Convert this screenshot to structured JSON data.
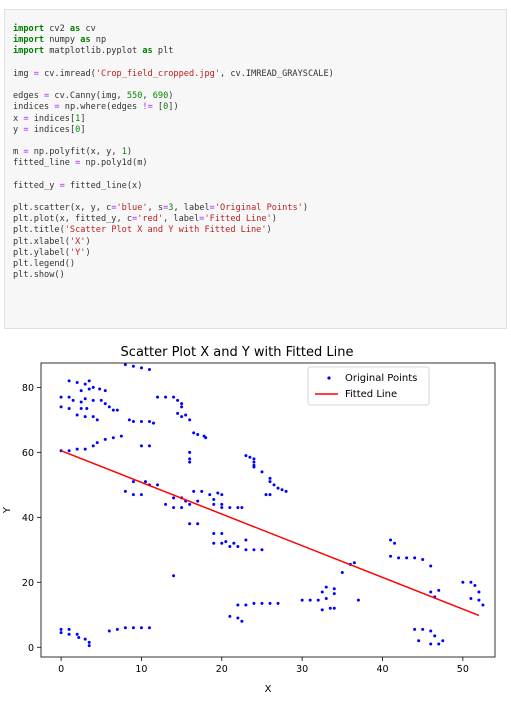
{
  "code_cell": {
    "lines": [
      [
        {
          "t": "import",
          "c": "kw"
        },
        {
          "t": " cv2 "
        },
        {
          "t": "as",
          "c": "kw"
        },
        {
          "t": " cv"
        }
      ],
      [
        {
          "t": "import",
          "c": "kw"
        },
        {
          "t": " numpy "
        },
        {
          "t": "as",
          "c": "kw"
        },
        {
          "t": " np"
        }
      ],
      [
        {
          "t": "import",
          "c": "kw"
        },
        {
          "t": " matplotlib.pyplot "
        },
        {
          "t": "as",
          "c": "kw"
        },
        {
          "t": " plt"
        }
      ],
      [],
      [
        {
          "t": "img "
        },
        {
          "t": "=",
          "c": "op"
        },
        {
          "t": " cv.imread("
        },
        {
          "t": "'Crop_field_cropped.jpg'",
          "c": "str"
        },
        {
          "t": ", cv.IMREAD_GRAYSCALE)"
        }
      ],
      [],
      [
        {
          "t": "edges "
        },
        {
          "t": "=",
          "c": "op"
        },
        {
          "t": " cv.Canny(img, "
        },
        {
          "t": "550",
          "c": "num"
        },
        {
          "t": ", "
        },
        {
          "t": "690",
          "c": "num"
        },
        {
          "t": ")"
        }
      ],
      [
        {
          "t": "indices "
        },
        {
          "t": "=",
          "c": "op"
        },
        {
          "t": " np.where(edges "
        },
        {
          "t": "!=",
          "c": "op"
        },
        {
          "t": " ["
        },
        {
          "t": "0",
          "c": "num"
        },
        {
          "t": "])"
        }
      ],
      [
        {
          "t": "x "
        },
        {
          "t": "=",
          "c": "op"
        },
        {
          "t": " indices["
        },
        {
          "t": "1",
          "c": "num"
        },
        {
          "t": "]"
        }
      ],
      [
        {
          "t": "y "
        },
        {
          "t": "=",
          "c": "op"
        },
        {
          "t": " indices["
        },
        {
          "t": "0",
          "c": "num"
        },
        {
          "t": "]"
        }
      ],
      [],
      [
        {
          "t": "m "
        },
        {
          "t": "=",
          "c": "op"
        },
        {
          "t": " np.polyfit(x, y, "
        },
        {
          "t": "1",
          "c": "num"
        },
        {
          "t": ")"
        }
      ],
      [
        {
          "t": "fitted_line "
        },
        {
          "t": "=",
          "c": "op"
        },
        {
          "t": " np.poly1d(m)"
        }
      ],
      [],
      [
        {
          "t": "fitted_y "
        },
        {
          "t": "=",
          "c": "op"
        },
        {
          "t": " fitted_line(x)"
        }
      ],
      [],
      [
        {
          "t": "plt.scatter(x, y, c"
        },
        {
          "t": "=",
          "c": "op"
        },
        {
          "t": "'blue'",
          "c": "str"
        },
        {
          "t": ", s"
        },
        {
          "t": "=",
          "c": "op"
        },
        {
          "t": "3",
          "c": "num"
        },
        {
          "t": ", label"
        },
        {
          "t": "=",
          "c": "op"
        },
        {
          "t": "'Original Points'",
          "c": "str"
        },
        {
          "t": ")"
        }
      ],
      [
        {
          "t": "plt.plot(x, fitted_y, c"
        },
        {
          "t": "=",
          "c": "op"
        },
        {
          "t": "'red'",
          "c": "str"
        },
        {
          "t": ", label"
        },
        {
          "t": "=",
          "c": "op"
        },
        {
          "t": "'Fitted Line'",
          "c": "str"
        },
        {
          "t": ")"
        }
      ],
      [
        {
          "t": "plt.title("
        },
        {
          "t": "'Scatter Plot X and Y with Fitted Line'",
          "c": "str"
        },
        {
          "t": ")"
        }
      ],
      [
        {
          "t": "plt.xlabel("
        },
        {
          "t": "'X'",
          "c": "str"
        },
        {
          "t": ")"
        }
      ],
      [
        {
          "t": "plt.ylabel("
        },
        {
          "t": "'Y'",
          "c": "str"
        },
        {
          "t": ")"
        }
      ],
      [
        {
          "t": "plt.legend()"
        }
      ],
      [
        {
          "t": "plt.show()"
        }
      ]
    ]
  },
  "chart_data": {
    "type": "scatter",
    "title": "Scatter Plot X and Y with Fitted Line",
    "xlabel": "X",
    "ylabel": "Y",
    "xlim": [
      -2.5,
      54
    ],
    "ylim": [
      -3,
      87.5
    ],
    "xticks": [
      0,
      10,
      20,
      30,
      40,
      50
    ],
    "yticks": [
      0,
      20,
      40,
      60,
      80
    ],
    "grid": false,
    "legend_position": "top-right",
    "colors": {
      "points": "#0000ff",
      "line": "#ff0000"
    },
    "series": [
      {
        "name": "Original Points",
        "kind": "scatter",
        "points": [
          [
            8,
            87
          ],
          [
            9,
            86.5
          ],
          [
            10,
            86
          ],
          [
            11,
            85.5
          ],
          [
            1,
            82
          ],
          [
            2,
            81.5
          ],
          [
            3,
            81
          ],
          [
            3.5,
            82
          ],
          [
            2.5,
            79
          ],
          [
            3.5,
            79.5
          ],
          [
            4,
            80
          ],
          [
            4.8,
            79.5
          ],
          [
            5.5,
            79
          ],
          [
            0,
            77
          ],
          [
            1,
            77
          ],
          [
            1.5,
            76
          ],
          [
            2.5,
            75.5
          ],
          [
            3,
            76.5
          ],
          [
            4,
            76
          ],
          [
            5,
            76
          ],
          [
            5.5,
            75
          ],
          [
            0,
            74
          ],
          [
            1,
            73.5
          ],
          [
            2.5,
            73.5
          ],
          [
            3.2,
            73.5
          ],
          [
            6,
            74
          ],
          [
            6.5,
            73
          ],
          [
            7,
            73
          ],
          [
            2,
            71.5
          ],
          [
            3,
            71
          ],
          [
            4,
            71
          ],
          [
            4.5,
            70
          ],
          [
            12,
            77
          ],
          [
            13,
            77
          ],
          [
            14,
            77
          ],
          [
            14.5,
            76
          ],
          [
            15,
            75
          ],
          [
            15,
            74
          ],
          [
            14.5,
            72
          ],
          [
            15,
            71
          ],
          [
            15.5,
            71.5
          ],
          [
            16,
            70
          ],
          [
            8.5,
            70
          ],
          [
            9,
            69.5
          ],
          [
            10,
            69.5
          ],
          [
            11,
            69.5
          ],
          [
            11.5,
            69
          ],
          [
            16.5,
            66
          ],
          [
            17,
            65.5
          ],
          [
            17.8,
            65
          ],
          [
            18,
            64.5
          ],
          [
            10,
            62
          ],
          [
            11,
            62
          ],
          [
            0,
            60.5
          ],
          [
            1,
            60.5
          ],
          [
            2,
            61
          ],
          [
            3,
            61
          ],
          [
            4,
            62
          ],
          [
            4.5,
            63
          ],
          [
            5.5,
            64
          ],
          [
            6.5,
            64.5
          ],
          [
            7.5,
            65
          ],
          [
            16,
            60
          ],
          [
            16,
            58
          ],
          [
            16,
            57
          ],
          [
            23,
            59
          ],
          [
            23.5,
            58.5
          ],
          [
            24,
            58
          ],
          [
            24,
            57
          ],
          [
            24,
            56
          ],
          [
            24,
            55.5
          ],
          [
            25,
            54
          ],
          [
            26,
            52
          ],
          [
            26,
            51
          ],
          [
            26.5,
            50
          ],
          [
            27,
            49
          ],
          [
            27.5,
            48.5
          ],
          [
            28,
            48
          ],
          [
            25.5,
            47
          ],
          [
            26,
            47
          ],
          [
            8,
            48
          ],
          [
            9,
            47
          ],
          [
            10,
            47
          ],
          [
            11,
            50
          ],
          [
            10.5,
            51
          ],
          [
            9,
            51
          ],
          [
            12,
            50
          ],
          [
            14,
            46
          ],
          [
            15,
            46
          ],
          [
            15.5,
            45
          ],
          [
            16,
            44
          ],
          [
            17,
            45
          ],
          [
            16.5,
            48
          ],
          [
            17.5,
            48
          ],
          [
            18.5,
            47
          ],
          [
            19.5,
            47.5
          ],
          [
            20,
            47
          ],
          [
            19,
            45.5
          ],
          [
            19,
            44
          ],
          [
            20,
            44
          ],
          [
            20,
            43
          ],
          [
            21,
            43
          ],
          [
            22,
            43
          ],
          [
            22.5,
            43
          ],
          [
            13,
            44
          ],
          [
            14,
            43
          ],
          [
            15,
            43
          ],
          [
            16,
            38
          ],
          [
            17,
            38
          ],
          [
            19,
            35
          ],
          [
            20,
            35
          ],
          [
            19,
            32
          ],
          [
            20,
            32
          ],
          [
            21,
            31
          ],
          [
            22,
            31
          ],
          [
            23,
            30
          ],
          [
            24,
            30
          ],
          [
            25,
            30
          ],
          [
            23,
            33
          ],
          [
            20.5,
            32.5
          ],
          [
            21.5,
            32
          ],
          [
            14,
            22
          ],
          [
            24,
            13.5
          ],
          [
            25,
            13.5
          ],
          [
            26,
            13.5
          ],
          [
            27,
            13.5
          ],
          [
            22,
            13
          ],
          [
            23,
            13
          ],
          [
            21,
            9.5
          ],
          [
            22,
            9
          ],
          [
            22.5,
            8
          ],
          [
            30,
            14.5
          ],
          [
            31,
            14.5
          ],
          [
            32,
            14.5
          ],
          [
            32.5,
            17
          ],
          [
            33,
            18.5
          ],
          [
            34,
            18
          ],
          [
            34,
            16.5
          ],
          [
            33,
            15
          ],
          [
            32.5,
            11.5
          ],
          [
            33.5,
            12
          ],
          [
            34,
            12
          ],
          [
            37,
            14.5
          ],
          [
            35,
            23
          ],
          [
            36,
            25.5
          ],
          [
            36.5,
            26
          ],
          [
            41,
            33
          ],
          [
            41.5,
            32
          ],
          [
            41,
            28
          ],
          [
            42,
            27.5
          ],
          [
            43,
            27.5
          ],
          [
            44,
            27.5
          ],
          [
            45,
            27
          ],
          [
            46,
            25
          ],
          [
            46,
            17
          ],
          [
            47,
            17.5
          ],
          [
            46.5,
            15.5
          ],
          [
            50,
            20
          ],
          [
            51,
            20
          ],
          [
            51.5,
            19
          ],
          [
            52,
            17
          ],
          [
            51,
            15
          ],
          [
            52,
            14.5
          ],
          [
            52.5,
            13
          ],
          [
            44,
            5.5
          ],
          [
            45,
            5.5
          ],
          [
            46,
            5
          ],
          [
            46.5,
            3.5
          ],
          [
            44.5,
            2
          ],
          [
            46,
            1
          ],
          [
            47,
            1
          ],
          [
            47.5,
            2
          ],
          [
            0,
            5.5
          ],
          [
            0,
            4.5
          ],
          [
            1,
            5.5
          ],
          [
            1,
            4
          ],
          [
            2,
            4
          ],
          [
            2.2,
            3
          ],
          [
            3,
            2.5
          ],
          [
            3.5,
            1.5
          ],
          [
            3.5,
            0.5
          ],
          [
            6,
            5
          ],
          [
            7,
            5.5
          ],
          [
            8,
            6
          ],
          [
            9,
            6
          ],
          [
            10,
            6
          ],
          [
            11,
            6
          ]
        ]
      },
      {
        "name": "Fitted Line",
        "kind": "line",
        "points": [
          [
            0,
            60.5
          ],
          [
            52,
            9.8
          ]
        ]
      }
    ]
  }
}
